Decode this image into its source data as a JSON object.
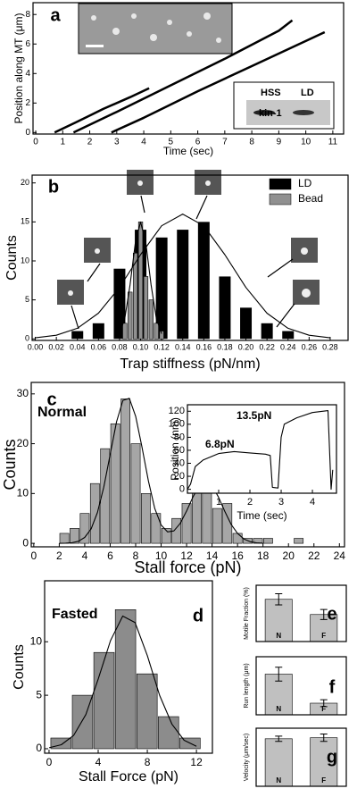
{
  "chart_data": [
    {
      "type": "line",
      "panel_label": "a",
      "xlabel": "Time (sec)",
      "ylabel": "Position along MT (μm)",
      "xlim": [
        -0.1,
        11.4
      ],
      "ylim": [
        -0.1,
        8.8
      ],
      "xticks": [
        0,
        1,
        2,
        3,
        4,
        5,
        6,
        7,
        8,
        9,
        10,
        11
      ],
      "yticks": [
        0,
        2,
        4,
        6,
        8
      ],
      "annotations": [
        "HSS",
        "LD",
        "kin-1"
      ],
      "series": [
        {
          "color": "#000000",
          "x": [
            0.7,
            1.5,
            2.5,
            3.5,
            4.2
          ],
          "values": [
            0,
            0.7,
            1.6,
            2.4,
            3.0
          ]
        },
        {
          "color": "#000000",
          "x": [
            1.4,
            3,
            5,
            7,
            9,
            9.5
          ],
          "values": [
            0,
            1.4,
            3.2,
            5.0,
            6.9,
            7.6
          ]
        },
        {
          "color": "#000000",
          "x": [
            2.8,
            4,
            6,
            8,
            10,
            10.7
          ],
          "values": [
            0,
            1.0,
            2.8,
            4.5,
            6.2,
            6.8
          ]
        }
      ]
    },
    {
      "type": "bar",
      "panel_label": "b",
      "xlabel": "Trap stiffness (pN/nm)",
      "ylabel": "Counts",
      "xlim": [
        -0.003,
        0.297
      ],
      "ylim": [
        -0.2,
        21
      ],
      "xticks": [
        {
          "value": 0,
          "label": "0.00"
        },
        {
          "value": 0.02,
          "label": "0.02"
        },
        {
          "value": 0.04,
          "label": "0.04"
        },
        {
          "value": 0.06,
          "label": "0.06"
        },
        {
          "value": 0.08,
          "label": "0.08"
        },
        {
          "value": 0.1,
          "label": "0.10"
        },
        {
          "value": 0.12,
          "label": "0.12"
        },
        {
          "value": 0.14,
          "label": "0.14"
        },
        {
          "value": 0.16,
          "label": "0.16"
        },
        {
          "value": 0.18,
          "label": "0.18"
        },
        {
          "value": 0.2,
          "label": "0.20"
        },
        {
          "value": 0.22,
          "label": "0.22"
        },
        {
          "value": 0.24,
          "label": "0.24"
        },
        {
          "value": 0.26,
          "label": "0.26"
        },
        {
          "value": 0.28,
          "label": "0.28"
        }
      ],
      "yticks": [
        0,
        5,
        10,
        15,
        20
      ],
      "legend": "upper right",
      "series": [
        {
          "name": "LD",
          "color": "#000000",
          "x": [
            0.04,
            0.06,
            0.08,
            0.1,
            0.12,
            0.14,
            0.16,
            0.18,
            0.2,
            0.22,
            0.24
          ],
          "values": [
            1,
            2,
            9,
            14,
            13,
            14,
            15,
            8,
            4,
            2,
            1
          ]
        },
        {
          "name": "Bead",
          "color": "#909090",
          "bins": [
            0.0825,
            0.0875,
            0.0925,
            0.0975,
            0.1025,
            0.1075,
            0.1125,
            0.1175,
            0.1225
          ],
          "values": [
            2,
            6,
            11,
            15,
            8,
            5,
            2,
            1
          ]
        },
        {
          "type": "line",
          "color": "#000000",
          "x": [
            0,
            0.02,
            0.04,
            0.06,
            0.08,
            0.1,
            0.12,
            0.14,
            0.16,
            0.18,
            0.2,
            0.22,
            0.24,
            0.26,
            0.28
          ],
          "values": [
            0.13,
            0.46,
            1.36,
            3.3,
            6.6,
            10.8,
            14.5,
            16,
            14.5,
            10.8,
            6.6,
            3.3,
            1.36,
            0.46,
            0.13
          ]
        },
        {
          "type": "line",
          "color": "#000000",
          "x": [
            0.08,
            0.085,
            0.09,
            0.095,
            0.1,
            0.105,
            0.11,
            0.115,
            0.12
          ],
          "values": [
            0.66,
            2.6,
            6.9,
            12.3,
            15,
            12.3,
            6.9,
            2.6,
            0.66
          ]
        }
      ]
    },
    {
      "type": "histogram",
      "panel_label": "c",
      "xlabel": "Stall force (pN)",
      "ylabel": "Counts",
      "xlim": [
        -0.2,
        24.4
      ],
      "ylim": [
        -0.7,
        32.3
      ],
      "xticks": [
        0,
        2,
        4,
        6,
        8,
        10,
        12,
        14,
        16,
        18,
        20,
        22,
        24
      ],
      "yticks": [
        0,
        10,
        20,
        30
      ],
      "annotations": [
        "Normal"
      ],
      "series": [
        {
          "color": "#a6a6a6",
          "bins": [
            2.0,
            2.8,
            3.6,
            4.4,
            5.2,
            6.0,
            6.8,
            7.6,
            8.4,
            9.2,
            10.0,
            10.8,
            11.6,
            12.4,
            13.2,
            14.0,
            14.8,
            15.6,
            16.4,
            17.2,
            18.0,
            18.8,
            19.6,
            20.4,
            21.2
          ],
          "values": [
            2,
            3,
            6,
            12,
            19,
            24,
            29,
            20,
            10,
            6,
            3,
            5,
            8,
            12,
            13,
            7,
            8,
            2,
            1,
            1,
            1,
            0,
            0,
            1
          ]
        },
        {
          "type": "line",
          "color": "#000000",
          "x": [
            2,
            2.5,
            3,
            3.5,
            4,
            4.5,
            5,
            5.5,
            6,
            6.5,
            7,
            7.5,
            8,
            8.5,
            9,
            9.5,
            10,
            10.5,
            11,
            11.5,
            12,
            12.5,
            13,
            13.5,
            14,
            14.5,
            15,
            15.5,
            16,
            16.5,
            17,
            17.5,
            18
          ],
          "values": [
            0,
            0.03,
            0.12,
            0.41,
            1.18,
            2.9,
            6.2,
            11.3,
            17.9,
            24.4,
            28.7,
            29.1,
            25.5,
            19.3,
            12.5,
            7.0,
            3.7,
            2.3,
            2.5,
            4.0,
            6.5,
            9.3,
            11.6,
            12.5,
            11.6,
            9.3,
            6.4,
            3.8,
            2.0,
            0.87,
            0.33,
            0.11,
            0.03
          ]
        }
      ]
    },
    {
      "type": "line",
      "xlabel": "Time (sec)",
      "ylabel": "Position (nm)",
      "xlim": [
        0,
        4.77
      ],
      "ylim": [
        -6,
        130
      ],
      "xticks": [
        1,
        2,
        3,
        4
      ],
      "yticks": [
        0,
        20,
        40,
        60,
        80,
        100,
        120
      ],
      "annotations": [
        "6.8pN",
        "13.5pN"
      ],
      "series": [
        {
          "color": "#000000",
          "x": [
            0,
            0.1,
            0.25,
            0.5,
            1,
            1.5,
            2,
            2.5,
            2.65,
            2.72,
            2.9,
            3.0,
            3.1,
            3.5,
            4,
            4.5,
            4.6,
            4.65
          ],
          "values": [
            0,
            8,
            35,
            45,
            55,
            58,
            56,
            54,
            52,
            3,
            2,
            80,
            100,
            110,
            118,
            121,
            0,
            30
          ]
        }
      ]
    },
    {
      "type": "histogram",
      "panel_label": "d",
      "xlabel": "Stall Force (pN)",
      "ylabel": "Counts",
      "xlim": [
        -0.36,
        13.3
      ],
      "ylim": [
        -0.42,
        15.7
      ],
      "xticks": [
        0,
        4,
        8,
        12
      ],
      "yticks": [
        0,
        5,
        10
      ],
      "annotations": [
        "Fasted"
      ],
      "series": [
        {
          "color": "#8c8c8c",
          "bins": [
            0.1,
            1.85,
            3.6,
            5.35,
            7.1,
            8.85,
            10.6,
            12.35
          ],
          "values": [
            1,
            5,
            9,
            13,
            7,
            3,
            1
          ]
        },
        {
          "type": "line",
          "color": "#000000",
          "x": [
            0,
            1,
            2,
            3,
            4,
            5,
            6,
            7,
            8,
            9,
            10,
            11,
            12
          ],
          "values": [
            0.09,
            0.37,
            1.24,
            3.2,
            6.5,
            10.1,
            12.4,
            11.8,
            8.7,
            5.0,
            2.3,
            0.79,
            0.22
          ]
        }
      ]
    },
    {
      "type": "bar",
      "panel_label": "e",
      "ylabel": "Motile Fraction (%)",
      "ylim": [
        0,
        100
      ],
      "categories": [
        "N",
        "F"
      ],
      "values": [
        75,
        48
      ],
      "errors": [
        10,
        9
      ],
      "color": "#c0c0c0"
    },
    {
      "type": "bar",
      "panel_label": "f",
      "ylabel": "Run length (μm)",
      "ylim": [
        0,
        10
      ],
      "categories": [
        "N",
        "F"
      ],
      "values": [
        7,
        2
      ],
      "errors": [
        1.2,
        0.6
      ],
      "color": "#c0c0c0"
    },
    {
      "type": "bar",
      "panel_label": "g",
      "ylabel": "Velocity (μm/sec)",
      "ylim": [
        0,
        1.1
      ],
      "categories": [
        "N",
        "F"
      ],
      "values": [
        0.9,
        0.92
      ],
      "errors": [
        0.05,
        0.07
      ],
      "color": "#c0c0c0"
    }
  ]
}
